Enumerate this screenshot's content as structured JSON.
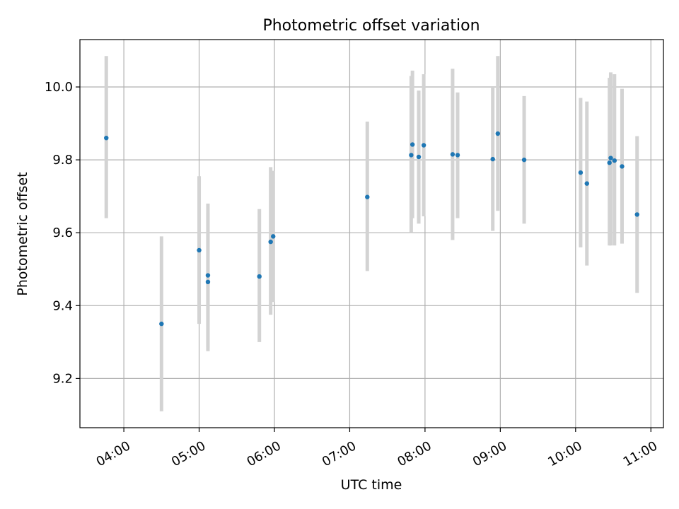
{
  "chart_data": {
    "type": "scatter",
    "title": "Photometric offset variation",
    "xlabel": "UTC time",
    "ylabel": "Photometric offset",
    "grid": true,
    "xlim": [
      "03:25",
      "11:10"
    ],
    "ylim": [
      9.065,
      10.13
    ],
    "x_ticks": [
      "04:00",
      "05:00",
      "06:00",
      "07:00",
      "08:00",
      "09:00",
      "10:00",
      "11:00"
    ],
    "y_ticks": [
      9.2,
      9.4,
      9.6,
      9.8,
      10.0
    ],
    "y_tick_labels": [
      "9.2",
      "9.4",
      "9.6",
      "9.8",
      "10.0"
    ],
    "colors": {
      "point": "#1f77b4",
      "errorbar": "#d3d3d3",
      "grid": "#b0b0b0"
    },
    "series": [
      {
        "x": [
          "03:46",
          "04:30",
          "05:00",
          "05:07",
          "05:07",
          "05:48",
          "05:57",
          "05:59",
          "07:14",
          "07:49",
          "07:50",
          "07:55",
          "07:59",
          "08:22",
          "08:26",
          "08:54",
          "08:58",
          "09:19",
          "10:04",
          "10:09",
          "10:27",
          "10:28",
          "10:31",
          "10:37",
          "10:49"
        ],
        "y": [
          9.86,
          9.35,
          9.552,
          9.483,
          9.465,
          9.48,
          9.575,
          9.59,
          9.698,
          9.813,
          9.842,
          9.808,
          9.84,
          9.815,
          9.813,
          9.802,
          9.872,
          9.8,
          9.765,
          9.735,
          9.792,
          9.805,
          9.798,
          9.782,
          9.65
        ],
        "y_low": [
          9.64,
          9.11,
          9.35,
          9.285,
          9.275,
          9.3,
          9.375,
          9.41,
          9.495,
          9.6,
          9.64,
          9.625,
          9.645,
          9.58,
          9.64,
          9.605,
          9.66,
          9.625,
          9.56,
          9.51,
          9.565,
          9.565,
          9.565,
          9.57,
          9.435
        ],
        "y_high": [
          10.085,
          9.59,
          9.755,
          9.68,
          9.655,
          9.665,
          9.78,
          9.77,
          9.905,
          10.03,
          10.045,
          9.99,
          10.035,
          10.05,
          9.985,
          10.0,
          10.085,
          9.975,
          9.97,
          9.96,
          10.025,
          10.04,
          10.035,
          9.995,
          9.865
        ]
      }
    ]
  }
}
